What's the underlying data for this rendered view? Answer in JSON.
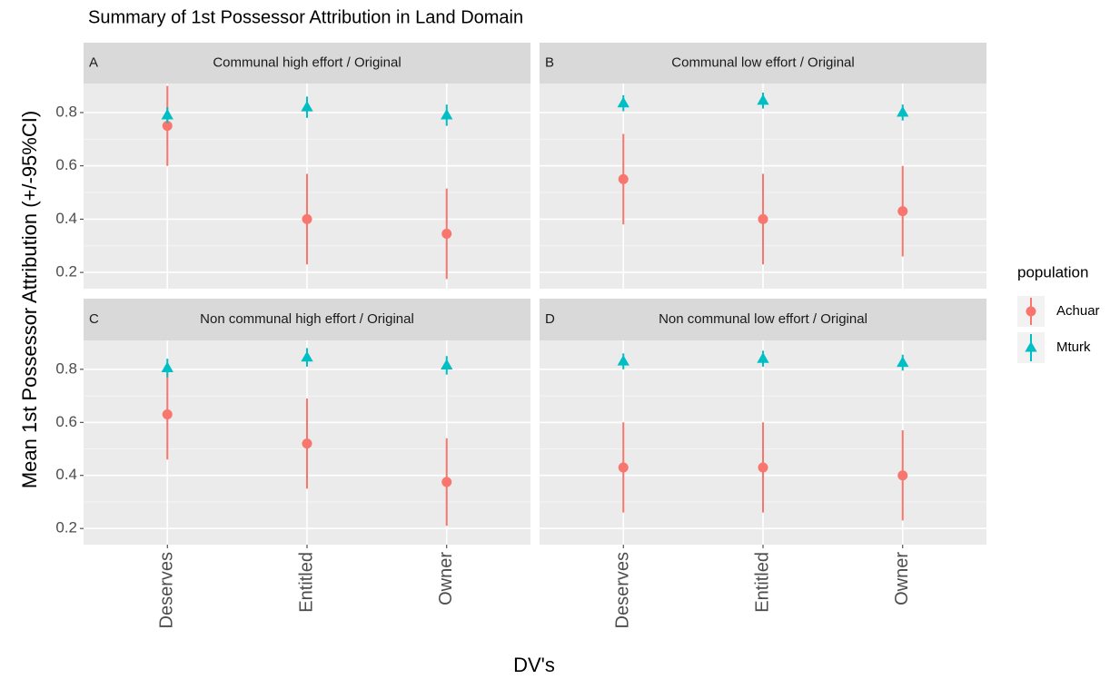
{
  "title": "Summary of 1st Possessor Attribution in Land Domain",
  "x_label": "DV's",
  "y_label": "Mean 1st Possessor Attribution (+/-95%CI)",
  "legend_title": "population",
  "legend_position": "right",
  "chart_data": [
    {
      "type": "pointrange",
      "tag": "A",
      "title": "Communal high effort / Original",
      "categories": [
        "Deserves",
        "Entitled",
        "Owner"
      ],
      "series": [
        {
          "name": "Achuar",
          "color": "#F8766D",
          "shape": "circle",
          "values": [
            0.75,
            0.4,
            0.345
          ],
          "errors": [
            0.15,
            0.17,
            0.17
          ]
        },
        {
          "name": "Mturk",
          "color": "#00BFC4",
          "shape": "triangle",
          "values": [
            0.79,
            0.82,
            0.79
          ],
          "errors": [
            0.03,
            0.04,
            0.04
          ]
        }
      ],
      "ylim": [
        0.139,
        0.909
      ],
      "yticks": [
        0.2,
        0.4,
        0.6,
        0.8
      ],
      "grid": true
    },
    {
      "type": "pointrange",
      "tag": "B",
      "title": "Communal low effort / Original",
      "categories": [
        "Deserves",
        "Entitled",
        "Owner"
      ],
      "series": [
        {
          "name": "Achuar",
          "color": "#F8766D",
          "shape": "circle",
          "values": [
            0.55,
            0.4,
            0.43
          ],
          "errors": [
            0.17,
            0.17,
            0.17
          ]
        },
        {
          "name": "Mturk",
          "color": "#00BFC4",
          "shape": "triangle",
          "values": [
            0.835,
            0.845,
            0.8
          ],
          "errors": [
            0.03,
            0.03,
            0.03
          ]
        }
      ],
      "ylim": [
        0.139,
        0.909
      ],
      "yticks": [
        0.2,
        0.4,
        0.6,
        0.8
      ],
      "grid": true
    },
    {
      "type": "pointrange",
      "tag": "C",
      "title": "Non communal high effort / Original",
      "categories": [
        "Deserves",
        "Entitled",
        "Owner"
      ],
      "series": [
        {
          "name": "Achuar",
          "color": "#F8766D",
          "shape": "circle",
          "values": [
            0.63,
            0.52,
            0.375
          ],
          "errors": [
            0.17,
            0.17,
            0.165
          ]
        },
        {
          "name": "Mturk",
          "color": "#00BFC4",
          "shape": "triangle",
          "values": [
            0.805,
            0.845,
            0.815
          ],
          "errors": [
            0.035,
            0.035,
            0.035
          ]
        }
      ],
      "ylim": [
        0.139,
        0.909
      ],
      "yticks": [
        0.2,
        0.4,
        0.6,
        0.8
      ],
      "grid": true
    },
    {
      "type": "pointrange",
      "tag": "D",
      "title": "Non communal low effort / Original",
      "categories": [
        "Deserves",
        "Entitled",
        "Owner"
      ],
      "series": [
        {
          "name": "Achuar",
          "color": "#F8766D",
          "shape": "circle",
          "values": [
            0.43,
            0.43,
            0.4
          ],
          "errors": [
            0.17,
            0.17,
            0.17
          ]
        },
        {
          "name": "Mturk",
          "color": "#00BFC4",
          "shape": "triangle",
          "values": [
            0.83,
            0.84,
            0.825
          ],
          "errors": [
            0.03,
            0.03,
            0.03
          ]
        }
      ],
      "ylim": [
        0.139,
        0.909
      ],
      "yticks": [
        0.2,
        0.4,
        0.6,
        0.8
      ],
      "grid": true
    }
  ]
}
